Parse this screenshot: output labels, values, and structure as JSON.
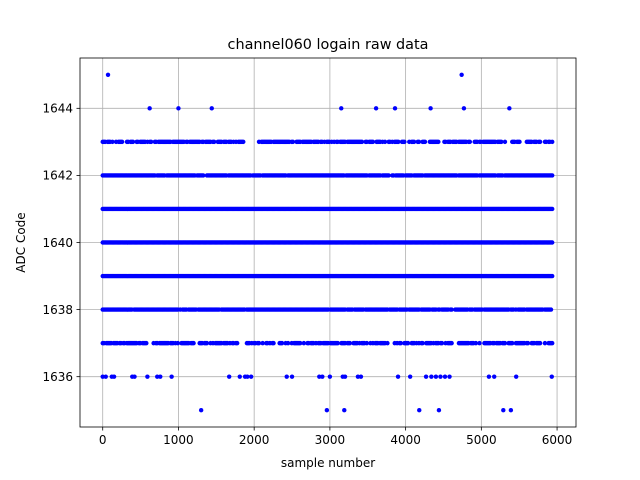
{
  "chart_data": {
    "type": "scatter",
    "title": "channel060 logain raw data",
    "xlabel": "sample number",
    "ylabel": "ADC Code",
    "xlim": [
      -300,
      6250
    ],
    "ylim": [
      1634.5,
      1645.5
    ],
    "x_ticks": [
      0,
      1000,
      2000,
      3000,
      4000,
      5000,
      6000
    ],
    "y_ticks": [
      1636,
      1638,
      1640,
      1642,
      1644
    ],
    "grid": true,
    "marker_color": "#0000ff",
    "x_range": [
      0,
      5940
    ],
    "levels": [
      {
        "value": 1635,
        "samples": [
          1300,
          2960,
          3190,
          4180,
          4440,
          5290,
          5390
        ]
      },
      {
        "value": 1636,
        "samples": [
          0,
          40,
          120,
          150,
          390,
          420,
          590,
          720,
          760,
          910,
          1670,
          1810,
          1880,
          1910,
          1960,
          2430,
          2500,
          2860,
          2900,
          3000,
          3170,
          3200,
          3370,
          3410,
          3900,
          4060,
          4270,
          4340,
          4400,
          4460,
          4520,
          4580,
          5100,
          5170,
          5460,
          5930
        ]
      },
      {
        "value": 1643,
        "density": "moderate",
        "gaps": [
          [
            1860,
            2010
          ],
          [
            4440,
            4500
          ],
          [
            5510,
            5580
          ]
        ]
      },
      {
        "value": 1642,
        "density": "dense",
        "gaps": []
      },
      {
        "value": 1641,
        "density": "full",
        "gaps": []
      },
      {
        "value": 1640,
        "density": "full",
        "gaps": []
      },
      {
        "value": 1639,
        "density": "full",
        "gaps": []
      },
      {
        "value": 1638,
        "density": "dense",
        "gaps": [
          [
            4620,
            4650
          ]
        ]
      },
      {
        "value": 1637,
        "density": "moderate",
        "gaps": [
          [
            1780,
            1860
          ],
          [
            2270,
            2330
          ],
          [
            4620,
            4700
          ]
        ]
      },
      {
        "value": 1644,
        "samples": [
          620,
          1000,
          1440,
          3150,
          3610,
          3860,
          4330,
          4770,
          5370
        ]
      },
      {
        "value": 1645,
        "samples": [
          70,
          4740
        ]
      }
    ]
  }
}
